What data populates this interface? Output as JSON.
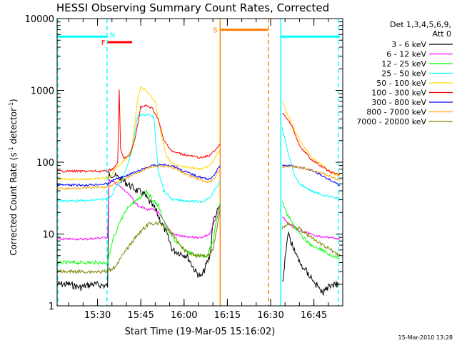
{
  "chart_data": {
    "type": "line",
    "title": "HESSI Observing Summary Count Rates, Corrected",
    "xlabel": "Start Time (19-Mar-05 15:16:02)",
    "ylabel_main": "Corrected Count Rate (s",
    "ylabel_exp1": "-1",
    "ylabel_mid": " detector",
    "ylabel_exp2": "-1",
    "ylabel_end": ")",
    "yscale": "log",
    "ylim": [
      1,
      10000
    ],
    "xlim_minutes_after_1516": [
      0,
      99
    ],
    "yticks": [
      {
        "v": 1,
        "label": "1"
      },
      {
        "v": 10,
        "label": "10"
      },
      {
        "v": 100,
        "label": "100"
      },
      {
        "v": 1000,
        "label": "1000"
      },
      {
        "v": 10000,
        "label": "10000"
      }
    ],
    "xticks": [
      {
        "t": 14,
        "label": "15:30"
      },
      {
        "t": 29,
        "label": "15:45"
      },
      {
        "t": 44,
        "label": "16:00"
      },
      {
        "t": 59,
        "label": "16:15"
      },
      {
        "t": 74,
        "label": "16:30"
      },
      {
        "t": 89,
        "label": "16:45"
      }
    ],
    "legend_header": [
      "Det 1,3,4,5,6,9,",
      "Att 0"
    ],
    "legend_placement": "top-right, outside plot",
    "series": [
      {
        "name": "3 - 6 keV",
        "color": "#000000",
        "points": [
          [
            0,
            2
          ],
          [
            4,
            2
          ],
          [
            8,
            1.8
          ],
          [
            12,
            2
          ],
          [
            17.5,
            1.9
          ],
          [
            18,
            70
          ],
          [
            20,
            65
          ],
          [
            23,
            55
          ],
          [
            25,
            48
          ],
          [
            27,
            42
          ],
          [
            30,
            36
          ],
          [
            34,
            22
          ],
          [
            38,
            10
          ],
          [
            40,
            6
          ],
          [
            45,
            5
          ],
          [
            48,
            3
          ],
          [
            50,
            2.5
          ],
          [
            53,
            5
          ],
          [
            54,
            15
          ],
          [
            56.5,
            25
          ]
        ]
      },
      {
        "name": "6 - 12 keV",
        "color": "#ff00ff",
        "points": [
          [
            0,
            8.5
          ],
          [
            5,
            8.5
          ],
          [
            10,
            8.5
          ],
          [
            17.5,
            9
          ],
          [
            18,
            55
          ],
          [
            20,
            52
          ],
          [
            22,
            45
          ],
          [
            25,
            35
          ],
          [
            28,
            25
          ],
          [
            31,
            22
          ],
          [
            33,
            22
          ],
          [
            35,
            20
          ],
          [
            37,
            15
          ],
          [
            40,
            10
          ],
          [
            45,
            9
          ],
          [
            50,
            9
          ],
          [
            53,
            10
          ],
          [
            56.5,
            25
          ]
        ]
      },
      {
        "name": "12 - 25 keV",
        "color": "#00ff00",
        "points": [
          [
            0,
            4
          ],
          [
            5,
            4
          ],
          [
            10,
            4
          ],
          [
            17.5,
            4
          ],
          [
            18,
            5
          ],
          [
            19.5,
            9
          ],
          [
            20.5,
            10
          ],
          [
            21.5,
            14
          ],
          [
            25,
            25
          ],
          [
            28,
            30
          ],
          [
            31,
            40
          ],
          [
            33,
            30
          ],
          [
            35,
            25
          ],
          [
            38,
            12
          ],
          [
            41,
            8
          ],
          [
            44,
            6
          ],
          [
            48,
            5
          ],
          [
            52,
            5
          ],
          [
            54,
            8
          ],
          [
            56.5,
            28
          ]
        ]
      },
      {
        "name": "25 - 50 keV",
        "color": "#00ffff",
        "points": [
          [
            0,
            29
          ],
          [
            5,
            29
          ],
          [
            10,
            29
          ],
          [
            17.5,
            31
          ],
          [
            19,
            34
          ],
          [
            20,
            44
          ],
          [
            22,
            52
          ],
          [
            24,
            80
          ],
          [
            26,
            150
          ],
          [
            28,
            450
          ],
          [
            30,
            460
          ],
          [
            32,
            460
          ],
          [
            33.5,
            420
          ],
          [
            35,
            80
          ],
          [
            37,
            40
          ],
          [
            40,
            30
          ],
          [
            45,
            29
          ],
          [
            50,
            28
          ],
          [
            53,
            32
          ],
          [
            56.5,
            55
          ]
        ]
      },
      {
        "name": "50 - 100 keV",
        "color": "#ffd700",
        "points": [
          [
            0,
            58
          ],
          [
            5,
            58
          ],
          [
            10,
            58
          ],
          [
            17.5,
            60
          ],
          [
            19,
            65
          ],
          [
            20,
            80
          ],
          [
            22,
            95
          ],
          [
            24,
            115
          ],
          [
            26,
            160
          ],
          [
            28,
            800
          ],
          [
            29,
            1100
          ],
          [
            30,
            1050
          ],
          [
            32,
            880
          ],
          [
            34,
            700
          ],
          [
            36,
            250
          ],
          [
            38,
            120
          ],
          [
            40,
            95
          ],
          [
            45,
            85
          ],
          [
            50,
            80
          ],
          [
            53,
            90
          ],
          [
            56.5,
            150
          ]
        ]
      },
      {
        "name": "100 - 300 keV",
        "color": "#ff0000",
        "points": [
          [
            0,
            75
          ],
          [
            5,
            75
          ],
          [
            10,
            75
          ],
          [
            17.5,
            75
          ],
          [
            19,
            80
          ],
          [
            20,
            85
          ],
          [
            21,
            100
          ],
          [
            21.5,
            1000
          ],
          [
            22,
            150
          ],
          [
            23,
            115
          ],
          [
            25,
            120
          ],
          [
            27,
            210
          ],
          [
            29,
            590
          ],
          [
            31,
            610
          ],
          [
            33,
            560
          ],
          [
            35,
            400
          ],
          [
            37,
            200
          ],
          [
            40,
            140
          ],
          [
            45,
            125
          ],
          [
            50,
            115
          ],
          [
            53,
            125
          ],
          [
            56.5,
            175
          ]
        ]
      },
      {
        "name": "300 - 800 keV",
        "color": "#0000ff",
        "points": [
          [
            0,
            48
          ],
          [
            5,
            48
          ],
          [
            10,
            48
          ],
          [
            17.5,
            50
          ],
          [
            20,
            58
          ],
          [
            24,
            65
          ],
          [
            28,
            75
          ],
          [
            32,
            88
          ],
          [
            36,
            92
          ],
          [
            40,
            90
          ],
          [
            44,
            75
          ],
          [
            48,
            65
          ],
          [
            52,
            58
          ],
          [
            54,
            62
          ],
          [
            56.5,
            90
          ]
        ]
      },
      {
        "name": "800 - 7000 keV",
        "color": "#ffa500",
        "points": [
          [
            0,
            43
          ],
          [
            5,
            43
          ],
          [
            10,
            44
          ],
          [
            17.5,
            45
          ],
          [
            20,
            50
          ],
          [
            24,
            60
          ],
          [
            28,
            72
          ],
          [
            32,
            85
          ],
          [
            36,
            88
          ],
          [
            40,
            85
          ],
          [
            44,
            70
          ],
          [
            48,
            60
          ],
          [
            52,
            52
          ],
          [
            54,
            56
          ],
          [
            56.5,
            80
          ]
        ]
      },
      {
        "name": "7000 - 20000 keV",
        "color": "#808000",
        "points": [
          [
            0,
            3
          ],
          [
            5,
            3
          ],
          [
            10,
            3
          ],
          [
            17.5,
            3
          ],
          [
            20,
            3.5
          ],
          [
            24,
            6
          ],
          [
            28,
            10
          ],
          [
            32,
            14
          ],
          [
            36,
            14
          ],
          [
            40,
            10
          ],
          [
            44,
            6
          ],
          [
            48,
            5
          ],
          [
            52,
            5
          ],
          [
            54,
            6
          ],
          [
            56.5,
            22
          ]
        ]
      }
    ],
    "series_after": [
      {
        "color": "#000000",
        "points": [
          [
            78,
            2
          ],
          [
            80,
            10
          ],
          [
            84,
            4
          ],
          [
            88,
            2.5
          ],
          [
            92,
            1.5
          ],
          [
            95,
            2
          ],
          [
            98,
            2
          ]
        ]
      },
      {
        "color": "#ff00ff",
        "points": [
          [
            78,
            18
          ],
          [
            80,
            14
          ],
          [
            84,
            11
          ],
          [
            88,
            10
          ],
          [
            92,
            9
          ],
          [
            95,
            9
          ],
          [
            98,
            8.5
          ]
        ]
      },
      {
        "color": "#00ff00",
        "points": [
          [
            78,
            28
          ],
          [
            80,
            18
          ],
          [
            84,
            10
          ],
          [
            88,
            7
          ],
          [
            92,
            6
          ],
          [
            95,
            5
          ],
          [
            98,
            4.5
          ]
        ]
      },
      {
        "color": "#00ffff",
        "points": [
          [
            78,
            300
          ],
          [
            80,
            140
          ],
          [
            82,
            70
          ],
          [
            84,
            50
          ],
          [
            88,
            40
          ],
          [
            92,
            35
          ],
          [
            95,
            33
          ],
          [
            98,
            31
          ]
        ]
      },
      {
        "color": "#ffd700",
        "points": [
          [
            78,
            700
          ],
          [
            80,
            450
          ],
          [
            82,
            300
          ],
          [
            84,
            200
          ],
          [
            88,
            120
          ],
          [
            92,
            90
          ],
          [
            95,
            70
          ],
          [
            98,
            65
          ]
        ]
      },
      {
        "color": "#ff0000",
        "points": [
          [
            78,
            480
          ],
          [
            80,
            400
          ],
          [
            82,
            280
          ],
          [
            84,
            170
          ],
          [
            88,
            110
          ],
          [
            92,
            85
          ],
          [
            95,
            72
          ],
          [
            98,
            67
          ]
        ]
      },
      {
        "color": "#0000ff",
        "points": [
          [
            78,
            90
          ],
          [
            82,
            88
          ],
          [
            86,
            82
          ],
          [
            90,
            72
          ],
          [
            94,
            58
          ],
          [
            98,
            48
          ]
        ]
      },
      {
        "color": "#ffa500",
        "points": [
          [
            78,
            85
          ],
          [
            82,
            88
          ],
          [
            86,
            82
          ],
          [
            90,
            75
          ],
          [
            94,
            65
          ],
          [
            98,
            55
          ]
        ]
      },
      {
        "color": "#808000",
        "points": [
          [
            78,
            12
          ],
          [
            80,
            14
          ],
          [
            84,
            12
          ],
          [
            88,
            9
          ],
          [
            92,
            7
          ],
          [
            95,
            6
          ],
          [
            98,
            5
          ]
        ]
      }
    ],
    "flags": [
      {
        "label": "N",
        "color": "#00ffff",
        "segments": [
          [
            0,
            17.5
          ],
          [
            77.5,
            98
          ]
        ],
        "y": 5600
      },
      {
        "label": "F",
        "color": "#ff0000",
        "segments": [
          [
            17.5,
            26
          ]
        ],
        "y": 4700
      },
      {
        "label": "S",
        "color": "#ff7f00",
        "segments": [
          [
            56.5,
            73
          ]
        ],
        "y": 7000
      }
    ],
    "vlines": [
      {
        "t": 0.2,
        "color": "#00ffff",
        "style": "dashed"
      },
      {
        "t": 17.3,
        "color": "#00ffff",
        "style": "dashed"
      },
      {
        "t": 56.5,
        "color": "#ff7f00",
        "style": "solid"
      },
      {
        "t": 73.2,
        "color": "#ff7f00",
        "style": "dashed"
      },
      {
        "t": 77.5,
        "color": "#00ffff",
        "style": "solid"
      },
      {
        "t": 97.5,
        "color": "#00ffff",
        "style": "dashed"
      }
    ],
    "footer_stamp": "15-Mar-2010 13:28"
  }
}
